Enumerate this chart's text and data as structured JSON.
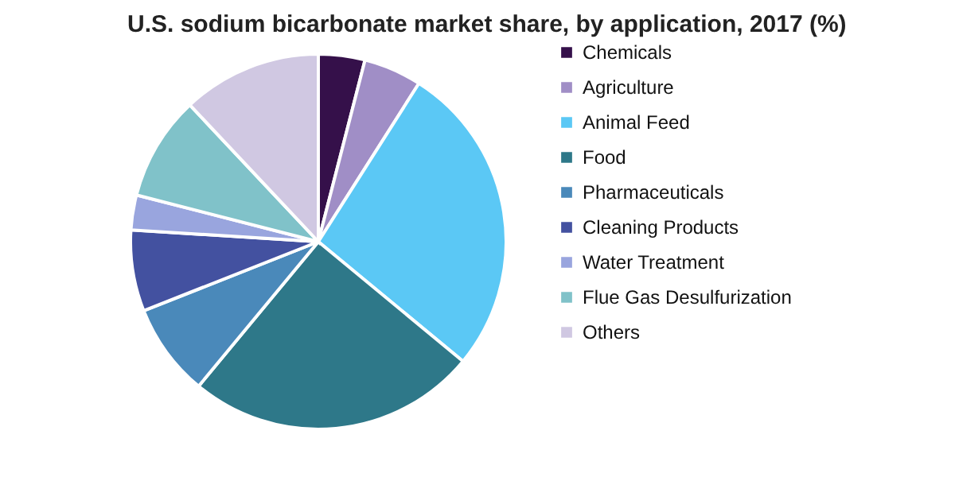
{
  "chart_data": {
    "type": "pie",
    "title": "U.S. sodium bicarbonate market share, by application, 2017 (%)",
    "categories": [
      "Chemicals",
      "Agriculture",
      "Animal Feed",
      "Food",
      "Pharmaceuticals",
      "Cleaning Products",
      "Water Treatment",
      "Flue Gas Desulfurization",
      "Others"
    ],
    "values": [
      4,
      5,
      27,
      25,
      8,
      7,
      3,
      9,
      12
    ],
    "colors": [
      "#35104a",
      "#a08ec6",
      "#5bc8f5",
      "#2e7889",
      "#4a89ba",
      "#4351a0",
      "#99a5de",
      "#80c2c9",
      "#d0c8e2"
    ],
    "legend": "right"
  }
}
